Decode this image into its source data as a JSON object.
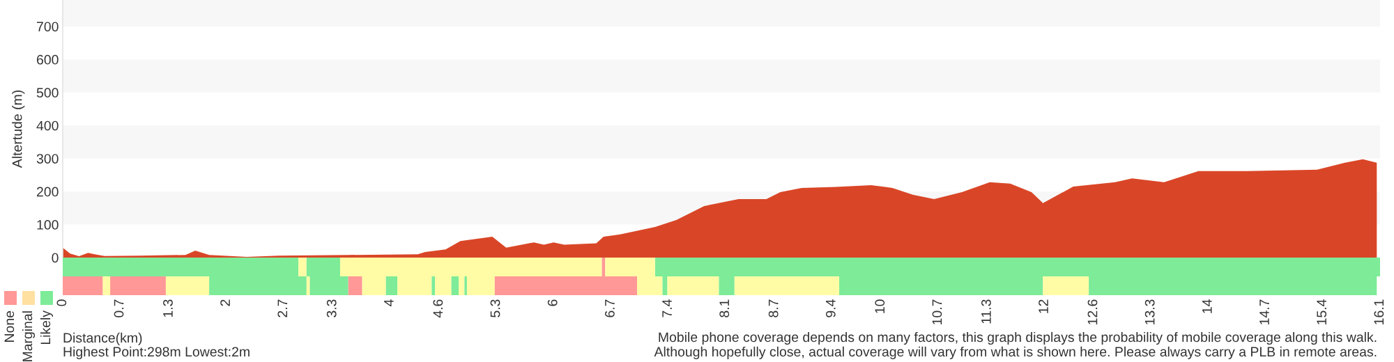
{
  "chart_data": [
    {
      "type": "area",
      "ylabel": "Altertude (m)",
      "xlim": [
        0,
        16.1
      ],
      "ylim": [
        0,
        780
      ],
      "yticks": [
        0,
        100,
        200,
        300,
        400,
        500,
        600,
        700
      ],
      "tick_labels": "y",
      "grid": false,
      "bands": [
        {
          "axis": "y",
          "from": 100,
          "to": 200,
          "color": "#f7f7f7"
        },
        {
          "axis": "y",
          "from": 300,
          "to": 400,
          "color": "#f7f7f7"
        },
        {
          "axis": "y",
          "from": 500,
          "to": 600,
          "color": "#f7f7f7"
        },
        {
          "axis": "y",
          "from": 700,
          "to": 780,
          "color": "#f7f7f7"
        }
      ],
      "series": [
        {
          "color": "#d94627",
          "x": [
            0,
            0.09,
            0.2,
            0.31,
            0.39,
            0.51,
            0.94,
            1.5,
            1.62,
            1.79,
            2.25,
            2.64,
            3.49,
            4.34,
            4.43,
            4.68,
            4.86,
            5.25,
            5.42,
            5.76,
            5.88,
            6.0,
            6.13,
            6.52,
            6.61,
            6.81,
            7.24,
            7.5,
            7.84,
            8.26,
            8.6,
            8.77,
            9.03,
            9.45,
            9.88,
            10.14,
            10.39,
            10.65,
            10.99,
            11.33,
            11.58,
            11.84,
            11.98,
            12.35,
            12.86,
            13.07,
            13.46,
            13.88,
            14.48,
            15.33,
            15.67,
            15.89,
            16.06
          ],
          "values": [
            30,
            12,
            4,
            14,
            10,
            5,
            6,
            8,
            21,
            8,
            2,
            6,
            8,
            10,
            17,
            25,
            50,
            63,
            30,
            46,
            39,
            46,
            39,
            43,
            63,
            70,
            93,
            114,
            156,
            177,
            177,
            198,
            211,
            214,
            219,
            211,
            190,
            177,
            198,
            228,
            224,
            198,
            165,
            215,
            228,
            240,
            228,
            262,
            262,
            266,
            287,
            298,
            287
          ]
        }
      ]
    },
    {
      "type": "bar",
      "orientation": "horizontal",
      "stacked": true,
      "xlabel": "Distance(km)",
      "xlim": [
        0,
        16.1
      ],
      "tick_labels": "x",
      "legend": "left",
      "categories": [
        null,
        null
      ],
      "xticks": [
        0,
        0.7,
        1.3,
        2,
        2.7,
        3.3,
        4,
        4.6,
        5.3,
        6,
        6.7,
        7.4,
        8.1,
        8.7,
        9.4,
        10,
        10.7,
        11.3,
        12,
        12.6,
        13.3,
        14,
        14.7,
        15.4,
        16.1
      ],
      "series": [
        {
          "values": [
            2.88,
            0.49
          ],
          "colors": [
            "#7deb98",
            "#ff9896"
          ]
        },
        {
          "values": [
            0.1,
            0.09
          ],
          "colors": [
            "#fffca5",
            "#fffca5"
          ]
        },
        {
          "values": [
            0.41,
            0.68
          ],
          "colors": [
            "#7deb98",
            "#ff9896"
          ]
        },
        {
          "values": [
            3.2,
            0.53
          ],
          "colors": [
            "#fffca5",
            "#fffca5"
          ]
        },
        {
          "values": [
            0.04,
            1.19
          ],
          "colors": [
            "#ff9896",
            "#7deb98"
          ]
        },
        {
          "values": [
            0.61,
            0.04
          ],
          "colors": [
            "#fffca5",
            "#fffca5"
          ]
        },
        {
          "values": [
            8.86,
            0.47
          ],
          "colors": [
            "#7deb98",
            "#7deb98"
          ]
        },
        {
          "values": [
            null,
            0.17
          ],
          "colors": [
            null,
            "#ff9896"
          ]
        },
        {
          "values": [
            null,
            0.29
          ],
          "colors": [
            null,
            "#fffca5"
          ]
        },
        {
          "values": [
            null,
            0.14
          ],
          "colors": [
            null,
            "#7deb98"
          ]
        },
        {
          "values": [
            null,
            0.42
          ],
          "colors": [
            null,
            "#fffca5"
          ]
        },
        {
          "values": [
            null,
            0.04
          ],
          "colors": [
            null,
            "#7deb98"
          ]
        },
        {
          "values": [
            null,
            0.2
          ],
          "colors": [
            null,
            "#fffca5"
          ]
        },
        {
          "values": [
            null,
            0.09
          ],
          "colors": [
            null,
            "#7deb98"
          ]
        },
        {
          "values": [
            null,
            0.07
          ],
          "colors": [
            null,
            "#fffca5"
          ]
        },
        {
          "values": [
            null,
            0.03
          ],
          "colors": [
            null,
            "#7deb98"
          ]
        },
        {
          "values": [
            null,
            0.34
          ],
          "colors": [
            null,
            "#fffca5"
          ]
        },
        {
          "values": [
            null,
            1.74
          ],
          "colors": [
            null,
            "#ff9896"
          ]
        },
        {
          "values": [
            null,
            0.31
          ],
          "colors": [
            null,
            "#fffca5"
          ]
        },
        {
          "values": [
            null,
            0.06
          ],
          "colors": [
            null,
            "#7deb98"
          ]
        },
        {
          "values": [
            null,
            0.63
          ],
          "colors": [
            null,
            "#fffca5"
          ]
        },
        {
          "values": [
            null,
            0.19
          ],
          "colors": [
            null,
            "#7deb98"
          ]
        },
        {
          "values": [
            null,
            1.28
          ],
          "colors": [
            null,
            "#fffca5"
          ]
        },
        {
          "values": [
            null,
            2.49
          ],
          "colors": [
            null,
            "#7deb98"
          ]
        },
        {
          "values": [
            null,
            0.56
          ],
          "colors": [
            null,
            "#fffca5"
          ]
        },
        {
          "values": [
            null,
            3.52
          ],
          "colors": [
            null,
            "#7deb98"
          ]
        },
        {
          "name": "None",
          "color": "#ff9896",
          "values": [
            null,
            null
          ]
        },
        {
          "name": "Marginal",
          "color": "#ffe0a0",
          "values": [
            null,
            null
          ]
        },
        {
          "name": "Likely",
          "color": "#7deb98",
          "values": [
            null,
            null
          ]
        }
      ],
      "annotations": [
        "Highest Point:298m Lowest:2m",
        "Mobile phone coverage depends on many factors, this graph displays the probability of mobile coverage along this walk.\nAlthough hopefully close, actual coverage will vary from what is shown here. Please always carry a PLB in remote areas."
      ]
    }
  ]
}
